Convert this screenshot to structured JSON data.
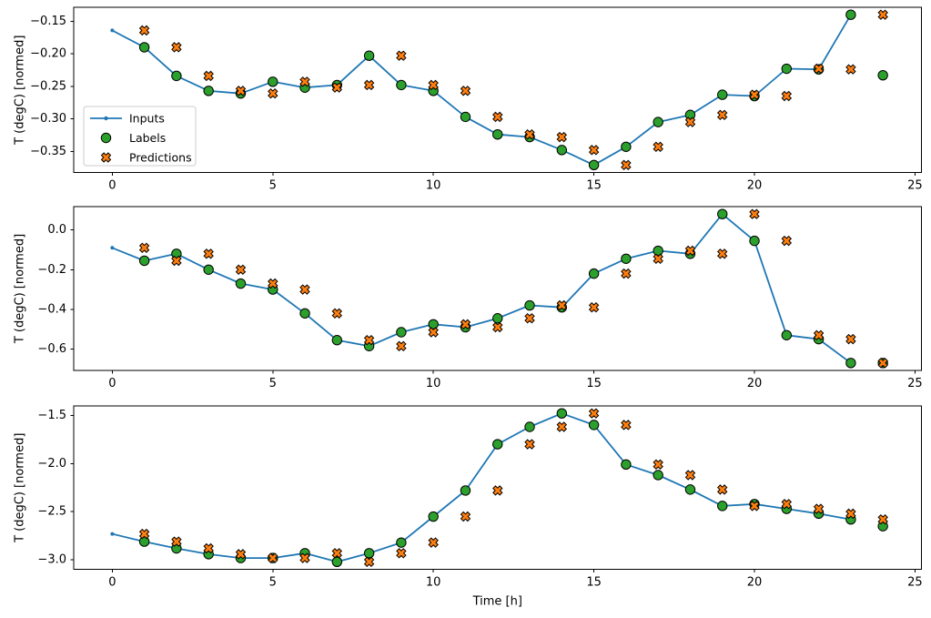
{
  "chart_data": {
    "type": "line",
    "title": "",
    "xlabel": "Time [h]",
    "ylabel": "T (degC) [normed]",
    "x_ticks": [
      0,
      5,
      10,
      15,
      20,
      25
    ],
    "x_tick_labels": [
      "0",
      "5",
      "10",
      "15",
      "20",
      "25"
    ],
    "xlim": [
      -1.2,
      25.2
    ],
    "grid": false,
    "background": "#ffffff",
    "colors": {
      "inputs_line": "#1f77b4",
      "labels_marker": "#2ca02c",
      "predictions_marker": "#ff7f0e",
      "marker_edge": "#000000",
      "spine": "#000000",
      "legend_edge": "#cccccc",
      "legend_face": "#ffffff"
    },
    "legend": {
      "position": "upper left area of first subplot",
      "entries": [
        {
          "label": "Inputs",
          "marker": "line-with-dot",
          "color": "#1f77b4"
        },
        {
          "label": "Labels",
          "marker": "circle",
          "color": "#2ca02c"
        },
        {
          "label": "Predictions",
          "marker": "X",
          "color": "#ff7f0e"
        }
      ]
    },
    "subplots": [
      {
        "ylabel": "T (degC) [normed]",
        "ylim": [
          -0.3825,
          -0.1285
        ],
        "y_ticks": [
          -0.15,
          -0.2,
          -0.25,
          -0.3,
          -0.35
        ],
        "y_tick_labels": [
          "−0.15",
          "−0.20",
          "−0.25",
          "−0.30",
          "−0.35"
        ],
        "series": [
          {
            "name": "Inputs",
            "kind": "line",
            "marker": "dot",
            "x": [
              0,
              1,
              2,
              3,
              4,
              5,
              6,
              7,
              8,
              9,
              10,
              11,
              12,
              13,
              14,
              15,
              16,
              17,
              18,
              19,
              20,
              21,
              22,
              23
            ],
            "y": [
              -0.164,
              -0.19,
              -0.234,
              -0.257,
              -0.261,
              -0.243,
              -0.252,
              -0.248,
              -0.203,
              -0.248,
              -0.257,
              -0.297,
              -0.324,
              -0.328,
              -0.348,
              -0.371,
              -0.343,
              -0.305,
              -0.294,
              -0.263,
              -0.265,
              -0.223,
              -0.224,
              -0.14
            ]
          },
          {
            "name": "Labels",
            "kind": "scatter",
            "marker": "circle",
            "x": [
              1,
              2,
              3,
              4,
              5,
              6,
              7,
              8,
              9,
              10,
              11,
              12,
              13,
              14,
              15,
              16,
              17,
              18,
              19,
              20,
              21,
              22,
              23,
              24
            ],
            "y": [
              -0.19,
              -0.234,
              -0.257,
              -0.261,
              -0.243,
              -0.252,
              -0.248,
              -0.203,
              -0.248,
              -0.257,
              -0.297,
              -0.324,
              -0.328,
              -0.348,
              -0.371,
              -0.343,
              -0.305,
              -0.294,
              -0.263,
              -0.265,
              -0.223,
              -0.224,
              -0.14,
              -0.233
            ]
          },
          {
            "name": "Predictions",
            "kind": "scatter",
            "marker": "X",
            "x": [
              1,
              2,
              3,
              4,
              5,
              6,
              7,
              8,
              9,
              10,
              11,
              12,
              13,
              14,
              15,
              16,
              17,
              18,
              19,
              20,
              21,
              22,
              23,
              24
            ],
            "y": [
              -0.164,
              -0.19,
              -0.234,
              -0.257,
              -0.261,
              -0.243,
              -0.252,
              -0.248,
              -0.203,
              -0.248,
              -0.257,
              -0.297,
              -0.324,
              -0.328,
              -0.348,
              -0.371,
              -0.343,
              -0.305,
              -0.294,
              -0.263,
              -0.265,
              -0.223,
              -0.224,
              -0.14
            ]
          }
        ]
      },
      {
        "ylabel": "T (degC) [normed]",
        "ylim": [
          -0.7075,
          0.1175
        ],
        "y_ticks": [
          0.0,
          -0.2,
          -0.4,
          -0.6
        ],
        "y_tick_labels": [
          "0.0",
          "−0.2",
          "−0.4",
          "−0.6"
        ],
        "series": [
          {
            "name": "Inputs",
            "kind": "line",
            "marker": "dot",
            "x": [
              0,
              1,
              2,
              3,
              4,
              5,
              6,
              7,
              8,
              9,
              10,
              11,
              12,
              13,
              14,
              15,
              16,
              17,
              18,
              19,
              20,
              21,
              22,
              23
            ],
            "y": [
              -0.09,
              -0.155,
              -0.12,
              -0.2,
              -0.27,
              -0.3,
              -0.42,
              -0.555,
              -0.585,
              -0.515,
              -0.475,
              -0.49,
              -0.445,
              -0.38,
              -0.39,
              -0.22,
              -0.145,
              -0.105,
              -0.12,
              0.08,
              -0.055,
              -0.53,
              -0.55,
              -0.67
            ]
          },
          {
            "name": "Labels",
            "kind": "scatter",
            "marker": "circle",
            "x": [
              1,
              2,
              3,
              4,
              5,
              6,
              7,
              8,
              9,
              10,
              11,
              12,
              13,
              14,
              15,
              16,
              17,
              18,
              19,
              20,
              21,
              22,
              23,
              24
            ],
            "y": [
              -0.155,
              -0.12,
              -0.2,
              -0.27,
              -0.3,
              -0.42,
              -0.555,
              -0.585,
              -0.515,
              -0.475,
              -0.49,
              -0.445,
              -0.38,
              -0.39,
              -0.22,
              -0.145,
              -0.105,
              -0.12,
              0.08,
              -0.055,
              -0.53,
              -0.55,
              -0.67,
              -0.67
            ]
          },
          {
            "name": "Predictions",
            "kind": "scatter",
            "marker": "X",
            "x": [
              1,
              2,
              3,
              4,
              5,
              6,
              7,
              8,
              9,
              10,
              11,
              12,
              13,
              14,
              15,
              16,
              17,
              18,
              19,
              20,
              21,
              22,
              23,
              24
            ],
            "y": [
              -0.09,
              -0.155,
              -0.12,
              -0.2,
              -0.27,
              -0.3,
              -0.42,
              -0.555,
              -0.585,
              -0.515,
              -0.475,
              -0.49,
              -0.445,
              -0.38,
              -0.39,
              -0.22,
              -0.145,
              -0.105,
              -0.12,
              0.08,
              -0.055,
              -0.53,
              -0.55,
              -0.67
            ]
          }
        ]
      },
      {
        "ylabel": "T (degC) [normed]",
        "ylim": [
          -3.097,
          -1.403
        ],
        "y_ticks": [
          -1.5,
          -2.0,
          -2.5,
          -3.0
        ],
        "y_tick_labels": [
          "−1.5",
          "−2.0",
          "−2.5",
          "−3.0"
        ],
        "series": [
          {
            "name": "Inputs",
            "kind": "line",
            "marker": "dot",
            "x": [
              0,
              1,
              2,
              3,
              4,
              5,
              6,
              7,
              8,
              9,
              10,
              11,
              12,
              13,
              14,
              15,
              16,
              17,
              18,
              19,
              20,
              21,
              22,
              23
            ],
            "y": [
              -2.73,
              -2.81,
              -2.88,
              -2.94,
              -2.98,
              -2.98,
              -2.93,
              -3.02,
              -2.93,
              -2.82,
              -2.55,
              -2.28,
              -1.8,
              -1.62,
              -1.48,
              -1.6,
              -2.01,
              -2.12,
              -2.27,
              -2.44,
              -2.42,
              -2.47,
              -2.52,
              -2.58
            ]
          },
          {
            "name": "Labels",
            "kind": "scatter",
            "marker": "circle",
            "x": [
              1,
              2,
              3,
              4,
              5,
              6,
              7,
              8,
              9,
              10,
              11,
              12,
              13,
              14,
              15,
              16,
              17,
              18,
              19,
              20,
              21,
              22,
              23,
              24
            ],
            "y": [
              -2.81,
              -2.88,
              -2.94,
              -2.98,
              -2.98,
              -2.93,
              -3.02,
              -2.93,
              -2.82,
              -2.55,
              -2.28,
              -1.8,
              -1.62,
              -1.48,
              -1.6,
              -2.01,
              -2.12,
              -2.27,
              -2.44,
              -2.42,
              -2.47,
              -2.52,
              -2.58,
              -2.65
            ]
          },
          {
            "name": "Predictions",
            "kind": "scatter",
            "marker": "X",
            "x": [
              1,
              2,
              3,
              4,
              5,
              6,
              7,
              8,
              9,
              10,
              11,
              12,
              13,
              14,
              15,
              16,
              17,
              18,
              19,
              20,
              21,
              22,
              23,
              24
            ],
            "y": [
              -2.73,
              -2.81,
              -2.88,
              -2.94,
              -2.98,
              -2.98,
              -2.93,
              -3.02,
              -2.93,
              -2.82,
              -2.55,
              -2.28,
              -1.8,
              -1.62,
              -1.48,
              -1.6,
              -2.01,
              -2.12,
              -2.27,
              -2.44,
              -2.42,
              -2.47,
              -2.52,
              -2.58
            ]
          }
        ]
      }
    ]
  }
}
